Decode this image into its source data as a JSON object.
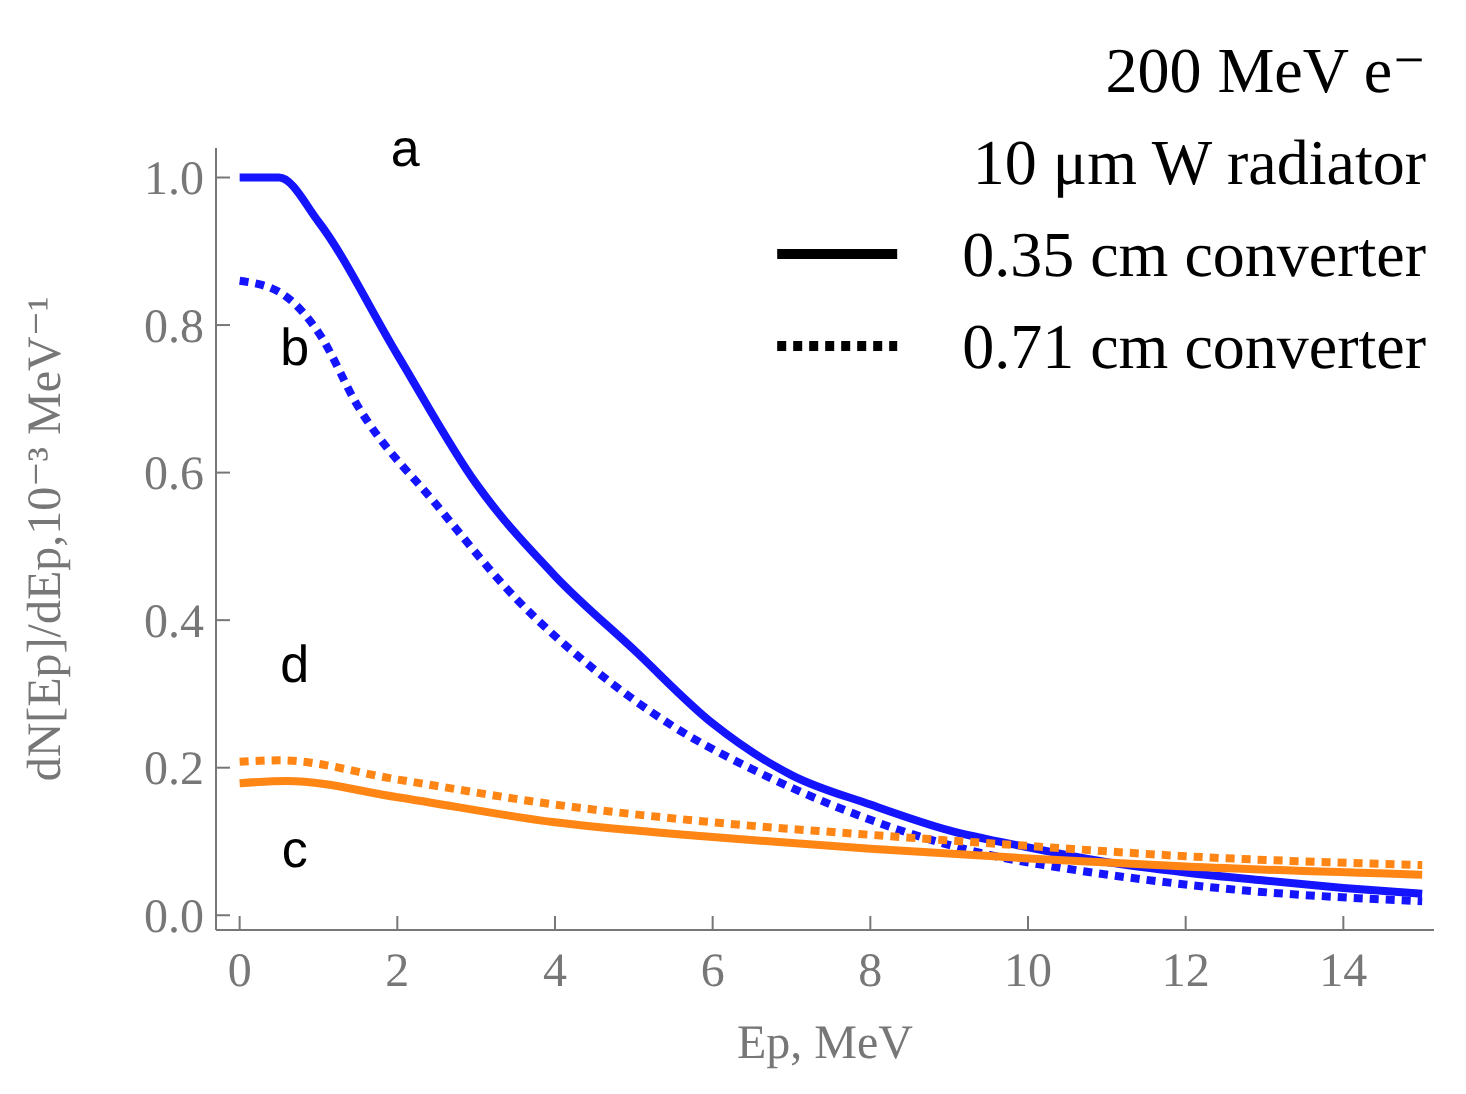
{
  "chart_data": {
    "type": "line",
    "xlabel": "Ep, MeV",
    "ylabel": "dN[Ep]/dEp,10⁻³ MeV⁻¹",
    "xlim": [
      -0.3,
      15.15
    ],
    "ylim": [
      -0.02,
      1.04
    ],
    "xticks": [
      0,
      2,
      4,
      6,
      8,
      10,
      12,
      14
    ],
    "yticks": [
      {
        "value": 0,
        "label": "0.0"
      },
      {
        "value": 0.2,
        "label": "0.2"
      },
      {
        "value": 0.4,
        "label": "0.4"
      },
      {
        "value": 0.6,
        "label": "0.6"
      },
      {
        "value": 0.8,
        "label": "0.8"
      },
      {
        "value": 1,
        "label": "1.0"
      }
    ],
    "grid": false,
    "series": [
      {
        "name": "a",
        "color": "#1414ff",
        "line_style": "solid",
        "x": [
          0,
          0.5,
          1,
          2,
          3,
          4,
          5,
          6,
          7,
          8,
          9,
          10,
          11,
          12,
          13,
          14,
          15
        ],
        "values": [
          1.0,
          1.0,
          0.94,
          0.76,
          0.585,
          0.46,
          0.36,
          0.26,
          0.19,
          0.15,
          0.115,
          0.092,
          0.072,
          0.058,
          0.047,
          0.037,
          0.029
        ]
      },
      {
        "name": "b",
        "color": "#1414ff",
        "line_style": "dotted",
        "x": [
          0,
          0.5,
          1,
          1.5,
          2.5,
          3.5,
          4.5,
          5.5,
          6.5,
          7.5,
          8.5,
          9.5,
          10.5,
          11.5,
          12.5,
          15
        ],
        "values": [
          0.86,
          0.845,
          0.79,
          0.69,
          0.556,
          0.43,
          0.333,
          0.256,
          0.198,
          0.15,
          0.111,
          0.082,
          0.063,
          0.048,
          0.036,
          0.019
        ]
      },
      {
        "name": "c",
        "color": "#ff8514",
        "line_style": "solid",
        "x": [
          0,
          0.6,
          2,
          4,
          6,
          8,
          10,
          12,
          15
        ],
        "values": [
          0.179,
          0.182,
          0.16,
          0.126,
          0.106,
          0.09,
          0.077,
          0.066,
          0.055
        ]
      },
      {
        "name": "d",
        "color": "#ff8514",
        "line_style": "dotted",
        "x": [
          0,
          0.5,
          2,
          4,
          6,
          8,
          10,
          12,
          15
        ],
        "values": [
          0.208,
          0.21,
          0.184,
          0.15,
          0.126,
          0.109,
          0.094,
          0.08,
          0.068
        ]
      }
    ],
    "annotations": [
      "200 MeV e⁻",
      "10 μm W radiator",
      "0.35 cm converter",
      "0.71 cm converter"
    ]
  }
}
